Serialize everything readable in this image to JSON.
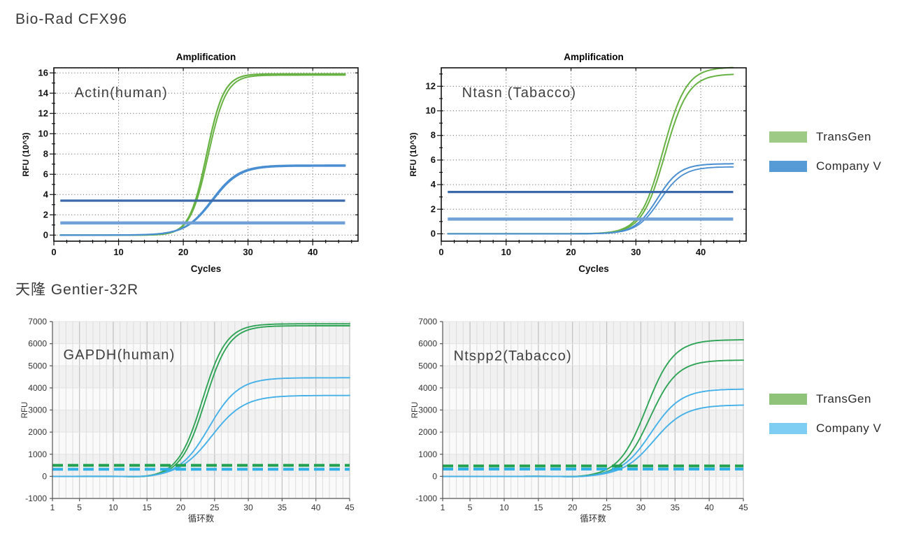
{
  "sections": [
    {
      "heading": "Bio-Rad CFX96"
    },
    {
      "heading": "天隆 Gentier-32R"
    }
  ],
  "legends": [
    {
      "entries": [
        {
          "label": "TransGen",
          "color": "#9dcb85"
        },
        {
          "label": "Company V",
          "color": "#569bd5"
        }
      ]
    },
    {
      "entries": [
        {
          "label": "TransGen",
          "color": "#8fc37a"
        },
        {
          "label": "Company V",
          "color": "#7ecdf2"
        }
      ]
    }
  ],
  "chart_data": [
    {
      "type": "line",
      "style": "biorad",
      "title": "Amplification",
      "annotation": {
        "text": "Actin(human)",
        "x": 3.2,
        "y": 13.6,
        "size": 20
      },
      "xlabel": "Cycles",
      "ylabel": "RFU (10^3)",
      "xlim": [
        0,
        47
      ],
      "ylim": [
        -0.6,
        16.5
      ],
      "xticks": [
        0,
        10,
        20,
        30,
        40
      ],
      "xminor": 2,
      "yticks": [
        0,
        2,
        4,
        6,
        8,
        10,
        12,
        14,
        16
      ],
      "yminor": 1,
      "x_data_range": [
        1,
        45
      ],
      "grid": "dotted",
      "series": [
        {
          "name": "TransGen rep1",
          "color": "#67b243",
          "width": 2.2,
          "sigmoid": {
            "L": 15.9,
            "x0": 23.6,
            "k": 0.75
          }
        },
        {
          "name": "TransGen rep2",
          "color": "#67b243",
          "width": 2.0,
          "sigmoid": {
            "L": 15.78,
            "x0": 23.85,
            "k": 0.72
          }
        },
        {
          "name": "Company V rep1",
          "color": "#4a8ed2",
          "width": 2.2,
          "sigmoid": {
            "L": 6.9,
            "x0": 24.4,
            "k": 0.48
          }
        },
        {
          "name": "Company V rep2",
          "color": "#4a8ed2",
          "width": 1.8,
          "sigmoid": {
            "L": 6.8,
            "x0": 24.55,
            "k": 0.48
          }
        }
      ],
      "thresholds": [
        {
          "y": 3.4,
          "color": "#3b69a9",
          "width": 3.2,
          "dash": null
        },
        {
          "y": 1.2,
          "color": "#71a1d7",
          "width": 4.5,
          "dash": null
        }
      ]
    },
    {
      "type": "line",
      "style": "biorad",
      "title": "Amplification",
      "annotation": {
        "text": "Ntasn (Tabacco)",
        "x": 3.2,
        "y": 11.1,
        "size": 20
      },
      "xlabel": "Cycles",
      "ylabel": "RFU (10^3)",
      "xlim": [
        0,
        47
      ],
      "ylim": [
        -0.6,
        13.5
      ],
      "xticks": [
        0,
        10,
        20,
        30,
        40
      ],
      "xminor": 2,
      "yticks": [
        0,
        2,
        4,
        6,
        8,
        10,
        12
      ],
      "yminor": 1,
      "x_data_range": [
        1,
        45
      ],
      "grid": "dotted",
      "series": [
        {
          "name": "TransGen rep1",
          "color": "#67b243",
          "width": 2.0,
          "sigmoid": {
            "L": 13.55,
            "x0": 34.2,
            "k": 0.56
          }
        },
        {
          "name": "TransGen rep2",
          "color": "#67b243",
          "width": 2.0,
          "sigmoid": {
            "L": 13.0,
            "x0": 34.5,
            "k": 0.56
          }
        },
        {
          "name": "Company V rep1",
          "color": "#4a8ed2",
          "width": 2.0,
          "sigmoid": {
            "L": 5.7,
            "x0": 33.3,
            "k": 0.58
          }
        },
        {
          "name": "Company V rep2",
          "color": "#4a8ed2",
          "width": 1.8,
          "sigmoid": {
            "L": 5.45,
            "x0": 33.7,
            "k": 0.56
          }
        }
      ],
      "thresholds": [
        {
          "y": 3.4,
          "color": "#3b69a9",
          "width": 3.2,
          "dash": null
        },
        {
          "y": 1.2,
          "color": "#71a1d7",
          "width": 4.5,
          "dash": null
        }
      ]
    },
    {
      "type": "line",
      "style": "gentier",
      "title": null,
      "annotation": {
        "text": "GAPDH(human)",
        "x": 2.6,
        "y": 5300,
        "size": 20
      },
      "xlabel": "循环数",
      "ylabel": "RFU",
      "xlim": [
        1,
        45
      ],
      "ylim": [
        -1000,
        7000
      ],
      "xticks": [
        1,
        5,
        10,
        15,
        20,
        25,
        30,
        35,
        40,
        45
      ],
      "xminor": 1,
      "xmajor_grid": 5,
      "yticks": [
        -1000,
        0,
        1000,
        2000,
        3000,
        4000,
        5000,
        6000,
        7000
      ],
      "x_data_range": [
        1,
        45
      ],
      "grid": "bands",
      "bands": {
        "from": 7000,
        "step": 1000,
        "colors": [
          "#f1f1f1",
          "#fafafa"
        ]
      },
      "series": [
        {
          "name": "TransGen rep1",
          "color": "#2fa457",
          "width": 1.9,
          "sigmoid": {
            "L": 6900,
            "x0": 23.2,
            "k": 0.56
          },
          "dip": {
            "c": 15,
            "w": 3.5,
            "d": -45
          }
        },
        {
          "name": "TransGen rep2",
          "color": "#2fa457",
          "width": 1.9,
          "sigmoid": {
            "L": 6810,
            "x0": 23.6,
            "k": 0.56
          },
          "dip": {
            "c": 15,
            "w": 3.5,
            "d": -45
          }
        },
        {
          "name": "Company V rep1",
          "color": "#45b1e8",
          "width": 1.9,
          "sigmoid": {
            "L": 4460,
            "x0": 24.2,
            "k": 0.46
          },
          "dip": {
            "c": 15,
            "w": 3.5,
            "d": -45
          }
        },
        {
          "name": "Company V rep2",
          "color": "#45b1e8",
          "width": 1.9,
          "sigmoid": {
            "L": 3660,
            "x0": 24.6,
            "k": 0.42
          },
          "dip": {
            "c": 15,
            "w": 3.5,
            "d": -45
          }
        }
      ],
      "thresholds": [
        {
          "y": 500,
          "color": "#21a14f",
          "width": 4,
          "dash": "15 7"
        },
        {
          "y": 320,
          "color": "#2fb0e6",
          "width": 4,
          "dash": "15 7"
        }
      ]
    },
    {
      "type": "line",
      "style": "gentier",
      "title": null,
      "annotation": {
        "text": "Ntspp2(Tabacco)",
        "x": 2.6,
        "y": 5250,
        "size": 20
      },
      "xlabel": "循环数",
      "ylabel": "RFU",
      "xlim": [
        1,
        45
      ],
      "ylim": [
        -1000,
        7000
      ],
      "xticks": [
        1,
        5,
        10,
        15,
        20,
        25,
        30,
        35,
        40,
        45
      ],
      "xminor": 1,
      "xmajor_grid": 5,
      "yticks": [
        -1000,
        0,
        1000,
        2000,
        3000,
        4000,
        5000,
        6000,
        7000
      ],
      "x_data_range": [
        1,
        45
      ],
      "grid": "bands",
      "bands": {
        "from": 7000,
        "step": 1000,
        "colors": [
          "#f1f1f1",
          "#fafafa"
        ]
      },
      "series": [
        {
          "name": "TransGen rep1",
          "color": "#2fa457",
          "width": 1.9,
          "sigmoid": {
            "L": 6180,
            "x0": 30.8,
            "k": 0.5
          },
          "dip": {
            "c": 21,
            "w": 3,
            "d": -35
          }
        },
        {
          "name": "TransGen rep2",
          "color": "#2fa457",
          "width": 1.9,
          "sigmoid": {
            "L": 5260,
            "x0": 31.3,
            "k": 0.5
          },
          "dip": {
            "c": 21,
            "w": 3,
            "d": -35
          }
        },
        {
          "name": "Company V rep1",
          "color": "#45b1e8",
          "width": 1.9,
          "sigmoid": {
            "L": 3950,
            "x0": 31.5,
            "k": 0.46
          },
          "dip": {
            "c": 21,
            "w": 3,
            "d": -35
          }
        },
        {
          "name": "Company V rep2",
          "color": "#45b1e8",
          "width": 1.9,
          "sigmoid": {
            "L": 3230,
            "x0": 31.9,
            "k": 0.44
          },
          "dip": {
            "c": 21,
            "w": 3,
            "d": -35
          }
        }
      ],
      "thresholds": [
        {
          "y": 470,
          "color": "#21a14f",
          "width": 4,
          "dash": "15 7"
        },
        {
          "y": 330,
          "color": "#2fb0e6",
          "width": 4,
          "dash": "15 7"
        }
      ]
    }
  ]
}
